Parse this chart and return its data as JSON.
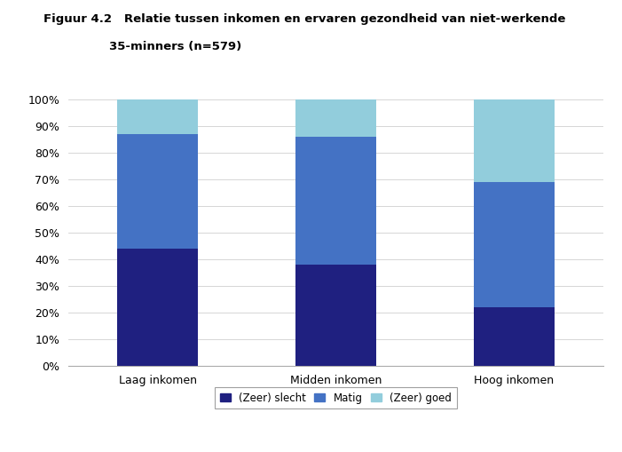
{
  "categories": [
    "Laag inkomen",
    "Midden inkomen",
    "Hoog inkomen"
  ],
  "series": {
    "(Zeer) slecht": [
      44,
      38,
      22
    ],
    "Matig": [
      43,
      48,
      47
    ],
    "(Zeer) goed": [
      13,
      14,
      31
    ]
  },
  "colors": {
    "(Zeer) slecht": "#1F2080",
    "Matig": "#4472C4",
    "(Zeer) goed": "#92CDDC"
  },
  "title_line1": "Figuur 4.2   Relatie tussen inkomen en ervaren gezondheid van niet-werkende",
  "title_line2": "                35-minners (n=579)",
  "ylim": [
    0,
    100
  ],
  "bar_width": 0.45,
  "legend_labels": [
    "(Zeer) slecht",
    "Matig",
    "(Zeer) goed"
  ],
  "background_color": "#FFFFFF",
  "yticks": [
    0,
    10,
    20,
    30,
    40,
    50,
    60,
    70,
    80,
    90,
    100
  ]
}
